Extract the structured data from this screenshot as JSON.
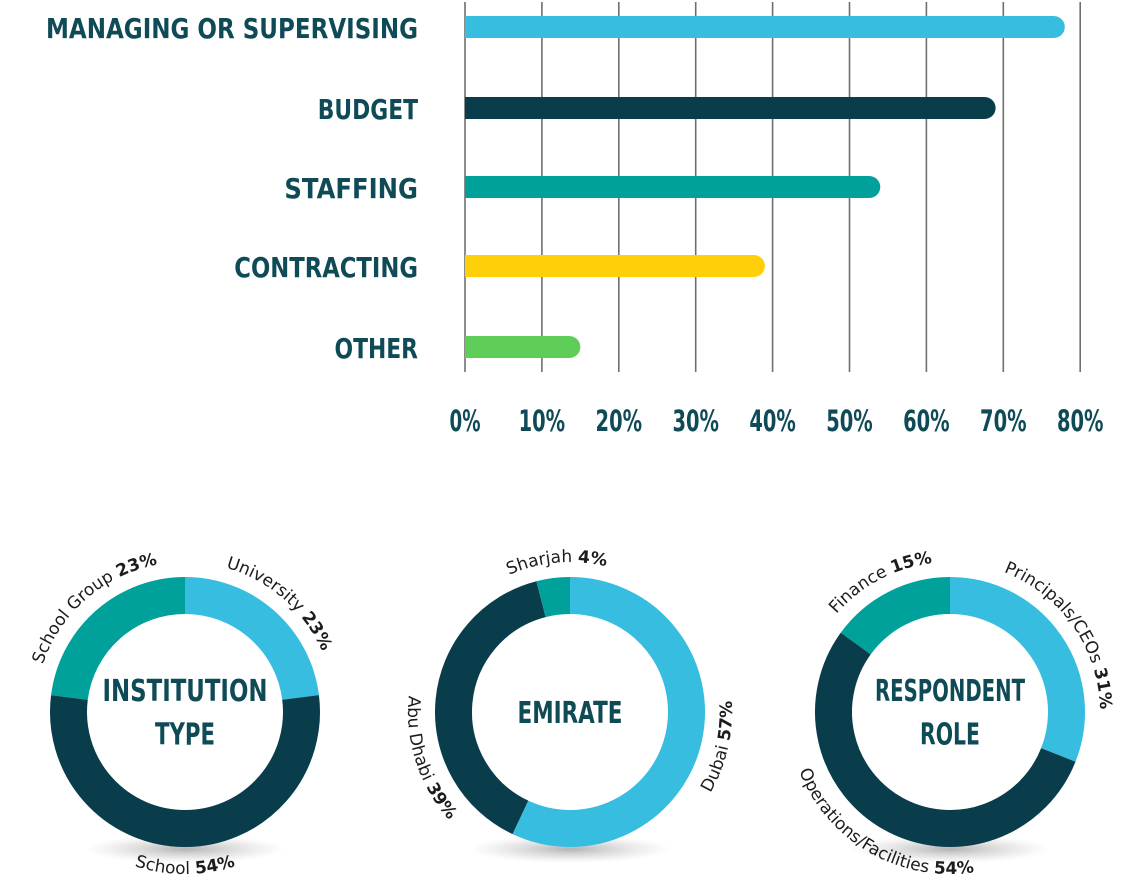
{
  "chart_data": [
    {
      "type": "bar",
      "orientation": "horizontal",
      "categories": [
        "MANAGING OR SUPERVISING",
        "BUDGET",
        "STAFFING",
        "CONTRACTING",
        "OTHER"
      ],
      "values": [
        78,
        69,
        54,
        39,
        15
      ],
      "colors": [
        "#36bde0",
        "#0a3d4c",
        "#00a19a",
        "#ffd00a",
        "#5fce58"
      ],
      "x_ticks": [
        "0%",
        "10%",
        "20%",
        "30%",
        "40%",
        "50%",
        "60%",
        "70%",
        "80%"
      ],
      "xlim": [
        0,
        80
      ],
      "grid": true
    },
    {
      "type": "pie",
      "center_label": [
        "INSTITUTION",
        "TYPE"
      ],
      "slices": [
        {
          "label": "University",
          "value": 23,
          "pct_label": "23%",
          "color": "#36bde0"
        },
        {
          "label": "School",
          "value": 54,
          "pct_label": "54%",
          "color": "#0a3d4c"
        },
        {
          "label": "School Group",
          "value": 23,
          "pct_label": "23%",
          "color": "#00a19a"
        }
      ]
    },
    {
      "type": "pie",
      "center_label": [
        "EMIRATE"
      ],
      "slices": [
        {
          "label": "Dubai",
          "value": 57,
          "pct_label": "57%",
          "color": "#36bde0"
        },
        {
          "label": "Abu Dhabi",
          "value": 39,
          "pct_label": "39%",
          "color": "#0a3d4c"
        },
        {
          "label": "Sharjah",
          "value": 4,
          "pct_label": "4%",
          "color": "#00a19a"
        }
      ]
    },
    {
      "type": "pie",
      "center_label": [
        "RESPONDENT",
        "ROLE"
      ],
      "slices": [
        {
          "label": "Principals/CEOs",
          "value": 31,
          "pct_label": "31%",
          "color": "#36bde0"
        },
        {
          "label": "Operations/Facilities",
          "value": 54,
          "pct_label": "54%",
          "color": "#0a3d4c"
        },
        {
          "label": "Finance",
          "value": 15,
          "pct_label": "15%",
          "color": "#00a19a"
        }
      ]
    }
  ]
}
